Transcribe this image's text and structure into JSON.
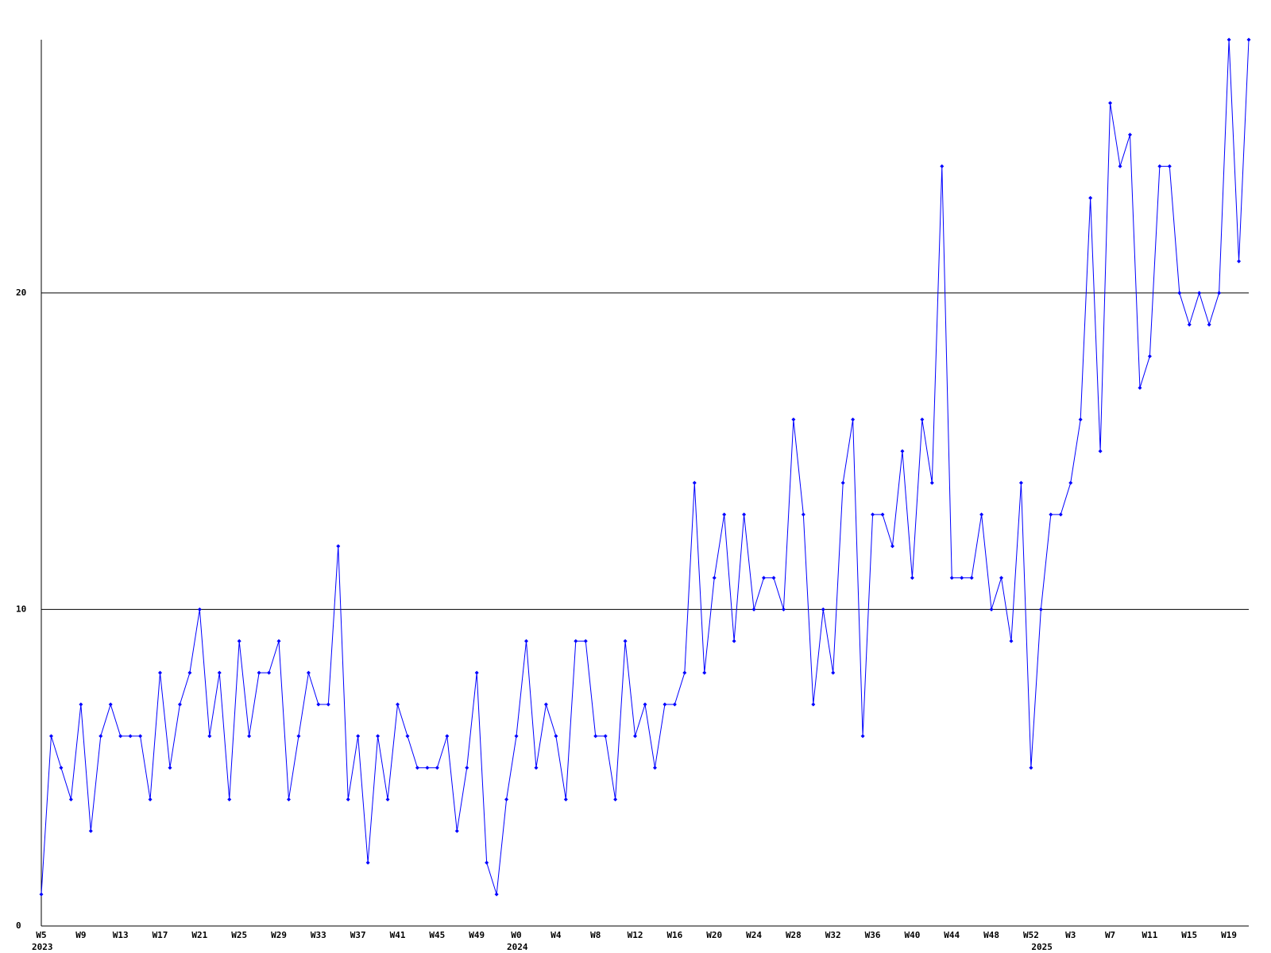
{
  "chart_data": {
    "type": "line",
    "categories": [
      "W5",
      null,
      null,
      null,
      "W9",
      null,
      null,
      null,
      "W13",
      null,
      null,
      null,
      "W17",
      null,
      null,
      null,
      "W21",
      null,
      null,
      null,
      "W25",
      null,
      null,
      null,
      "W29",
      null,
      null,
      null,
      "W33",
      null,
      null,
      null,
      "W37",
      null,
      null,
      null,
      "W41",
      null,
      null,
      null,
      "W45",
      null,
      null,
      null,
      "W49",
      null,
      null,
      null,
      "W0",
      null,
      null,
      null,
      "W4",
      null,
      null,
      null,
      "W8",
      null,
      null,
      null,
      "W12",
      null,
      null,
      null,
      "W16",
      null,
      null,
      null,
      "W20",
      null,
      null,
      null,
      "W24",
      null,
      null,
      null,
      "W28",
      null,
      null,
      null,
      "W32",
      null,
      null,
      null,
      "W36",
      null,
      null,
      null,
      "W40",
      null,
      null,
      null,
      "W44",
      null,
      null,
      null,
      "W48",
      null,
      null,
      null,
      "W52",
      null,
      null,
      null,
      "W3",
      null,
      null,
      null,
      "W7",
      null,
      null,
      null,
      "W11",
      null,
      null,
      null,
      "W15",
      null,
      null,
      null,
      "W19",
      null,
      null
    ],
    "years": [
      "2023",
      null,
      null,
      null,
      null,
      null,
      null,
      null,
      null,
      null,
      null,
      null,
      null,
      null,
      null,
      null,
      null,
      null,
      null,
      null,
      null,
      null,
      null,
      null,
      null,
      null,
      null,
      null,
      null,
      null,
      null,
      null,
      null,
      null,
      null,
      null,
      null,
      null,
      null,
      null,
      null,
      null,
      null,
      null,
      null,
      null,
      null,
      null,
      "2024",
      null,
      null,
      null,
      null,
      null,
      null,
      null,
      null,
      null,
      null,
      null,
      null,
      null,
      null,
      null,
      null,
      null,
      null,
      null,
      null,
      null,
      null,
      null,
      null,
      null,
      null,
      null,
      null,
      null,
      null,
      null,
      null,
      null,
      null,
      null,
      null,
      null,
      null,
      null,
      null,
      null,
      null,
      null,
      null,
      null,
      null,
      null,
      null,
      null,
      null,
      null,
      null,
      "2025",
      null,
      null,
      null,
      null,
      null,
      null,
      null,
      null,
      null,
      null,
      null,
      null,
      null,
      null,
      null,
      null,
      null,
      null,
      null,
      null,
      null
    ],
    "values": [
      1,
      6,
      5,
      4,
      7,
      3,
      6,
      7,
      6,
      6,
      6,
      4,
      8,
      5,
      7,
      8,
      10,
      6,
      8,
      4,
      9,
      6,
      8,
      8,
      9,
      4,
      6,
      8,
      7,
      7,
      12,
      4,
      6,
      2,
      6,
      4,
      7,
      6,
      5,
      5,
      5,
      6,
      3,
      5,
      8,
      2,
      1,
      4,
      6,
      9,
      5,
      7,
      6,
      4,
      9,
      9,
      6,
      6,
      4,
      9,
      6,
      7,
      5,
      7,
      7,
      8,
      14,
      8,
      11,
      13,
      9,
      13,
      10,
      11,
      11,
      10,
      16,
      13,
      7,
      10,
      8,
      14,
      16,
      6,
      13,
      13,
      12,
      15,
      11,
      16,
      14,
      24,
      11,
      11,
      11,
      13,
      10,
      11,
      9,
      14,
      5,
      10,
      13,
      13,
      14,
      16,
      23,
      15,
      26,
      24,
      25,
      17,
      18,
      24,
      24,
      20,
      19,
      20,
      19,
      20,
      28,
      21,
      28
    ],
    "color": "#0000ff",
    "ylim": [
      0,
      28
    ],
    "yticks": [
      0,
      10,
      20
    ],
    "grid": true
  }
}
